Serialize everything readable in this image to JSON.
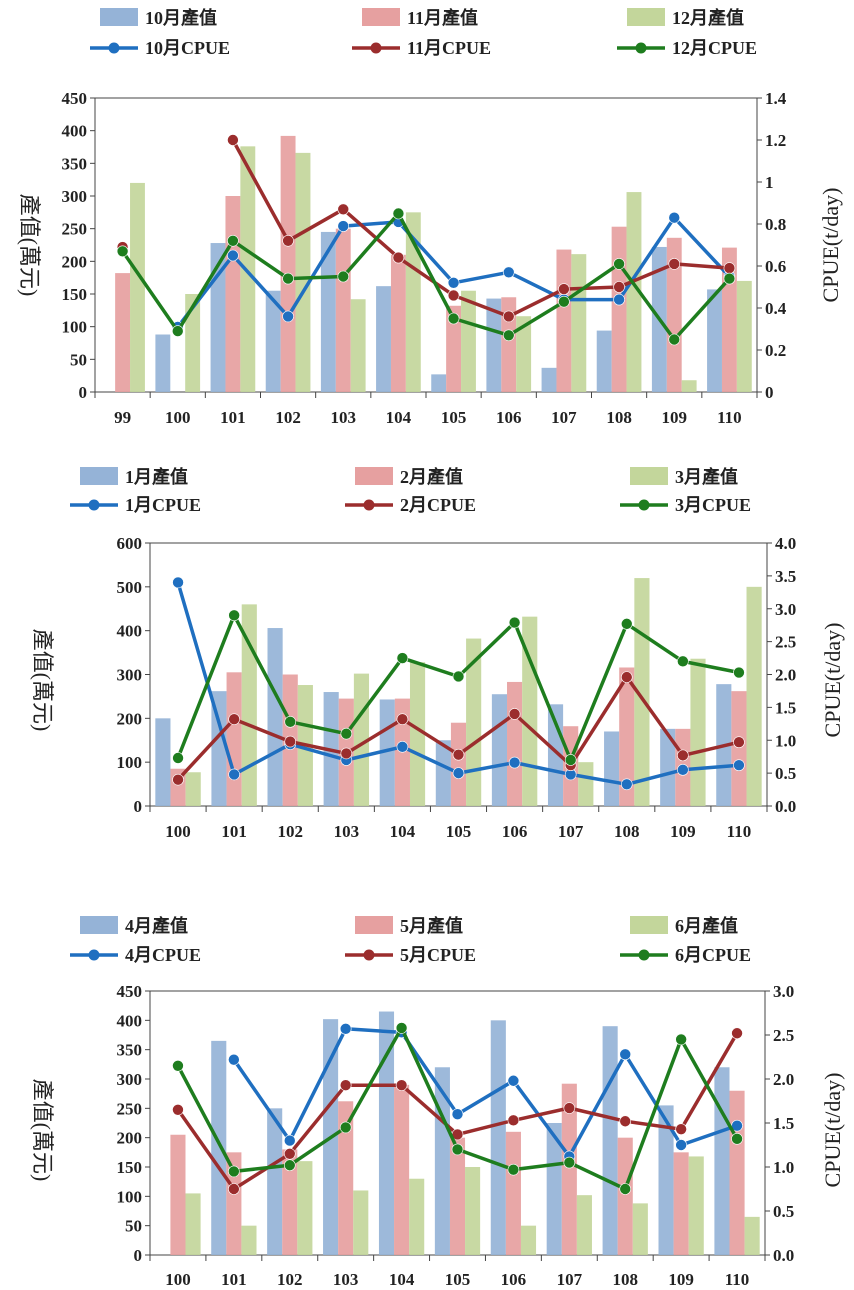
{
  "chart_data": [
    {
      "type": "bar+line",
      "categories": [
        "99",
        "100",
        "101",
        "102",
        "103",
        "104",
        "105",
        "106",
        "107",
        "108",
        "109",
        "110"
      ],
      "ylabel": "產值(萬元)",
      "ylabel_right": "CPUE(t/day)",
      "ylim": [
        0,
        450
      ],
      "ylim_right": [
        0,
        1.4
      ],
      "yticks": [
        "0",
        "50",
        "100",
        "150",
        "200",
        "250",
        "300",
        "350",
        "400",
        "450"
      ],
      "yticks_right": [
        "0",
        "0.2",
        "0.4",
        "0.6",
        "0.8",
        "1",
        "1.2",
        "1.4"
      ],
      "grid": false,
      "legend_position": "top",
      "bars": [
        {
          "name": "10月產值",
          "values": [
            0,
            88,
            228,
            155,
            245,
            162,
            27,
            143,
            37,
            94,
            222,
            157
          ]
        },
        {
          "name": "11月產值",
          "values": [
            182,
            0,
            300,
            392,
            250,
            210,
            132,
            145,
            218,
            253,
            236,
            221
          ]
        },
        {
          "name": "12月產值",
          "values": [
            320,
            150,
            376,
            366,
            142,
            275,
            155,
            116,
            211,
            306,
            18,
            170
          ]
        }
      ],
      "lines": [
        {
          "name": "10月CPUE",
          "values": [
            null,
            0.31,
            0.65,
            0.36,
            0.79,
            0.81,
            0.52,
            0.57,
            0.44,
            0.44,
            0.83,
            0.55
          ]
        },
        {
          "name": "11月CPUE",
          "values": [
            0.69,
            null,
            1.2,
            0.72,
            0.87,
            0.64,
            0.46,
            0.36,
            0.49,
            0.5,
            0.61,
            0.59
          ]
        },
        {
          "name": "12月CPUE",
          "values": [
            0.67,
            0.29,
            0.72,
            0.54,
            0.55,
            0.85,
            0.35,
            0.27,
            0.43,
            0.61,
            0.25,
            0.54
          ]
        }
      ]
    },
    {
      "type": "bar+line",
      "categories": [
        "100",
        "101",
        "102",
        "103",
        "104",
        "105",
        "106",
        "107",
        "108",
        "109",
        "110"
      ],
      "ylabel": "產值(萬元)",
      "ylabel_right": "CPUE(t/day)",
      "ylim": [
        0,
        600
      ],
      "ylim_right": [
        0,
        4.0
      ],
      "yticks": [
        "0",
        "100",
        "200",
        "300",
        "400",
        "500",
        "600"
      ],
      "yticks_right": [
        "0.0",
        "0.5",
        "1.0",
        "1.5",
        "2.0",
        "2.5",
        "3.0",
        "3.5",
        "4.0"
      ],
      "grid": false,
      "legend_position": "top",
      "bars": [
        {
          "name": "1月產值",
          "values": [
            200,
            262,
            406,
            260,
            243,
            150,
            255,
            232,
            170,
            176,
            278
          ]
        },
        {
          "name": "2月產值",
          "values": [
            85,
            305,
            300,
            245,
            245,
            190,
            283,
            182,
            316,
            176,
            262
          ]
        },
        {
          "name": "3月產值",
          "values": [
            77,
            460,
            276,
            302,
            328,
            382,
            432,
            100,
            520,
            336,
            500
          ]
        }
      ],
      "lines": [
        {
          "name": "1月CPUE",
          "values": [
            3.4,
            0.48,
            0.94,
            0.7,
            0.9,
            0.5,
            0.66,
            0.48,
            0.33,
            0.55,
            0.62
          ]
        },
        {
          "name": "2月CPUE",
          "values": [
            0.4,
            1.32,
            0.98,
            0.8,
            1.32,
            0.78,
            1.4,
            0.62,
            1.96,
            0.77,
            0.97
          ]
        },
        {
          "name": "3月CPUE",
          "values": [
            0.73,
            2.9,
            1.28,
            1.1,
            2.25,
            1.97,
            2.79,
            0.7,
            2.77,
            2.2,
            2.03
          ]
        }
      ]
    },
    {
      "type": "bar+line",
      "categories": [
        "100",
        "101",
        "102",
        "103",
        "104",
        "105",
        "106",
        "107",
        "108",
        "109",
        "110"
      ],
      "ylabel": "產值(萬元)",
      "ylabel_right": "CPUE(t/day)",
      "ylim": [
        0,
        450
      ],
      "ylim_right": [
        0,
        3.0
      ],
      "yticks": [
        "0",
        "50",
        "100",
        "150",
        "200",
        "250",
        "300",
        "350",
        "400",
        "450"
      ],
      "yticks_right": [
        "0.0",
        "0.5",
        "1.0",
        "1.5",
        "2.0",
        "2.5",
        "3.0"
      ],
      "grid": false,
      "legend_position": "top",
      "bars": [
        {
          "name": "4月產值",
          "values": [
            0,
            365,
            250,
            402,
            415,
            320,
            400,
            225,
            390,
            255,
            320
          ]
        },
        {
          "name": "5月產值",
          "values": [
            205,
            175,
            180,
            262,
            290,
            200,
            210,
            292,
            200,
            175,
            280
          ]
        },
        {
          "name": "6月產值",
          "values": [
            105,
            50,
            160,
            110,
            130,
            150,
            50,
            102,
            88,
            168,
            65
          ]
        }
      ],
      "lines": [
        {
          "name": "4月CPUE",
          "values": [
            null,
            2.22,
            1.3,
            2.57,
            2.53,
            1.6,
            1.98,
            1.12,
            2.28,
            1.25,
            1.47
          ]
        },
        {
          "name": "5月CPUE",
          "values": [
            1.65,
            0.75,
            1.15,
            1.93,
            1.93,
            1.37,
            1.53,
            1.67,
            1.52,
            1.43,
            2.52
          ]
        },
        {
          "name": "6月CPUE",
          "values": [
            2.15,
            0.95,
            1.02,
            1.45,
            2.58,
            1.2,
            0.97,
            1.05,
            0.75,
            2.45,
            1.32
          ]
        }
      ]
    }
  ],
  "colors": {
    "bar": [
      "#95b3d7",
      "#e6a0a0",
      "#c3d69b"
    ],
    "line": [
      "#1f6fc0",
      "#9b2d2d",
      "#1e7d1e"
    ]
  }
}
